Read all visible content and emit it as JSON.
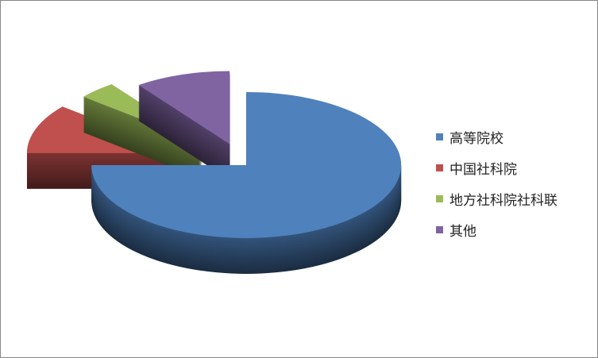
{
  "chart_data": {
    "type": "pie",
    "style": "3d-exploded",
    "categories": [
      "高等院校",
      "中国社科院",
      "地方社科院社科联",
      "其他"
    ],
    "values": [
      75,
      11,
      4,
      10
    ],
    "colors": [
      "#4F81BD",
      "#C0504D",
      "#9BBB59",
      "#8064A2"
    ],
    "legend_position": "right"
  }
}
